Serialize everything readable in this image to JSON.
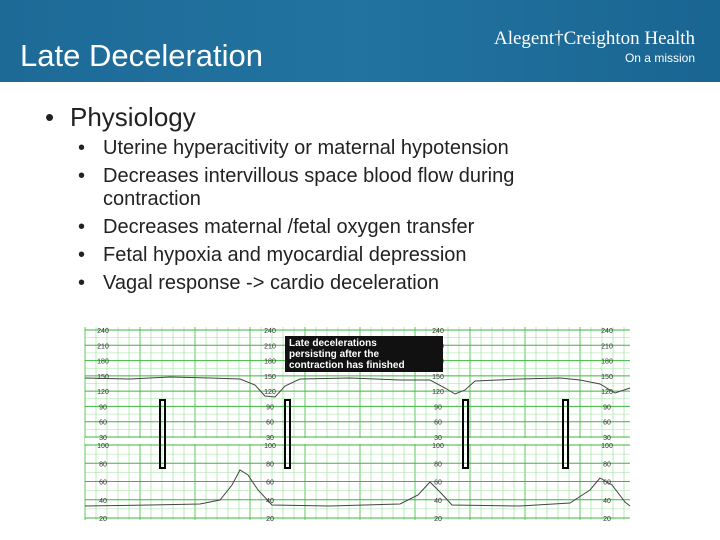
{
  "header": {
    "title": "Late Deceleration",
    "logo": {
      "name": "Alegent†Creighton Health",
      "tagline": "On a mission"
    }
  },
  "content": {
    "heading": "Physiology",
    "bullets": [
      "Uterine hyperacitivity or maternal hypotension",
      "Decreases intervillous space blood flow during contraction",
      "Decreases maternal /fetal oxygen transfer",
      "Fetal hypoxia and myocardial depression",
      "Vagal response -> cardio deceleration"
    ]
  },
  "tracing": {
    "caption": [
      "Late decelerations",
      "persisting after the",
      "contraction has finished"
    ],
    "fhr_labels": [
      "240",
      "210",
      "180",
      "150",
      "120",
      "90",
      "60",
      "30"
    ],
    "uc_labels": [
      "100",
      "80",
      "60",
      "40",
      "20"
    ]
  }
}
